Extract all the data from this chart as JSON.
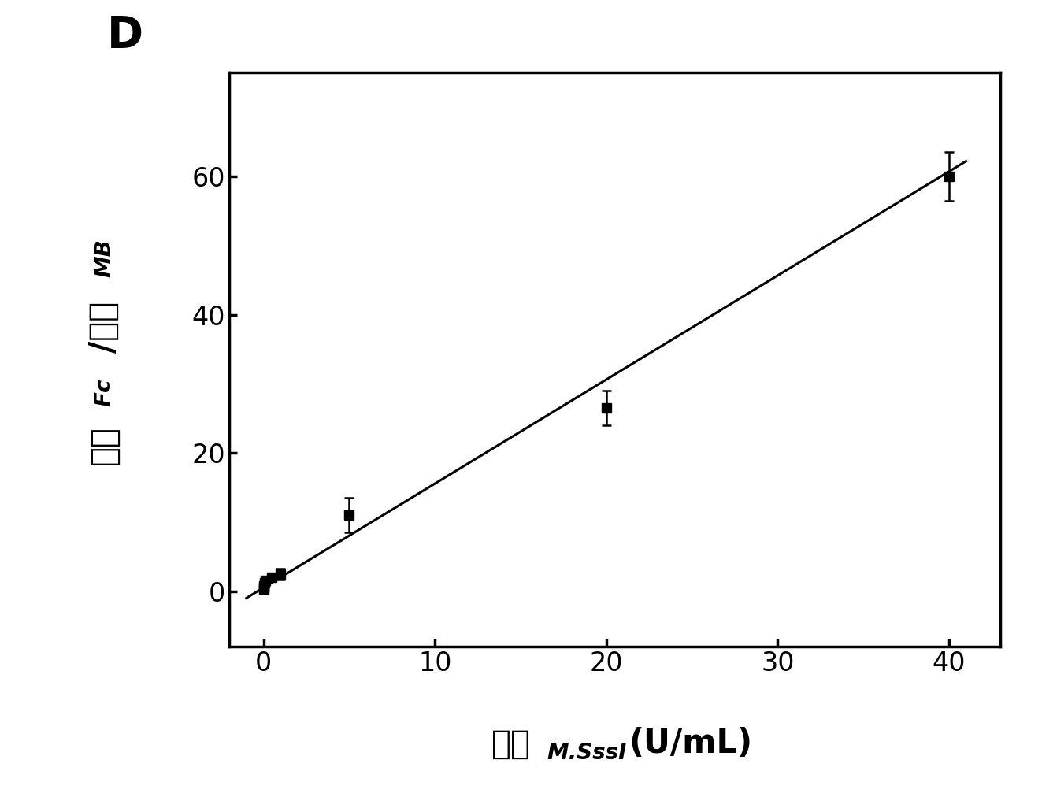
{
  "title_label": "D",
  "xlim": [
    -2,
    43
  ],
  "ylim": [
    -8,
    75
  ],
  "xticks": [
    0,
    10,
    20,
    30,
    40
  ],
  "yticks": [
    0,
    20,
    40,
    60
  ],
  "data_x": [
    0.001,
    0.005,
    0.01,
    0.05,
    0.1,
    0.5,
    1.0,
    5.0,
    20.0,
    40.0
  ],
  "data_y": [
    0.5,
    0.3,
    0.7,
    1.2,
    1.5,
    2.0,
    2.5,
    11.0,
    26.5,
    60.0
  ],
  "data_yerr": [
    0.6,
    0.4,
    0.4,
    0.5,
    0.6,
    0.5,
    0.8,
    2.5,
    2.5,
    3.5
  ],
  "fit_x_start": -1.0,
  "fit_x_end": 41.0,
  "fit_slope": 1.505,
  "fit_intercept": 0.5,
  "marker_size": 8,
  "line_color": "#000000",
  "marker_color": "#000000",
  "background_color": "#ffffff",
  "tick_fontsize": 24,
  "label_fontsize_large": 30,
  "label_fontsize_small": 20,
  "title_fontsize": 40,
  "linewidth": 2.2,
  "spine_linewidth": 2.5
}
